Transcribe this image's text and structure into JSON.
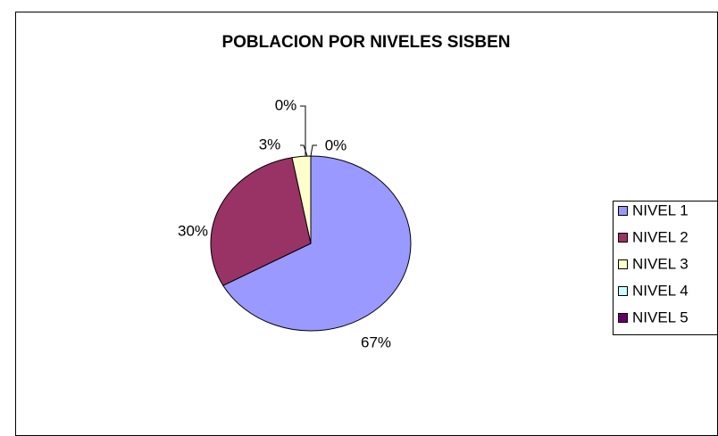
{
  "chart_data": {
    "type": "pie",
    "title": "POBLACION POR NIVELES SISBEN",
    "categories": [
      "NIVEL 1",
      "NIVEL 2",
      "NIVEL 3",
      "NIVEL 4",
      "NIVEL 5"
    ],
    "values": [
      67,
      30,
      3,
      0,
      0
    ],
    "value_labels": [
      "67%",
      "30%",
      "3%",
      "0%",
      "0%"
    ],
    "colors": [
      "#9999ff",
      "#993366",
      "#ffffcc",
      "#ccffff",
      "#660066"
    ],
    "legend": "right"
  }
}
